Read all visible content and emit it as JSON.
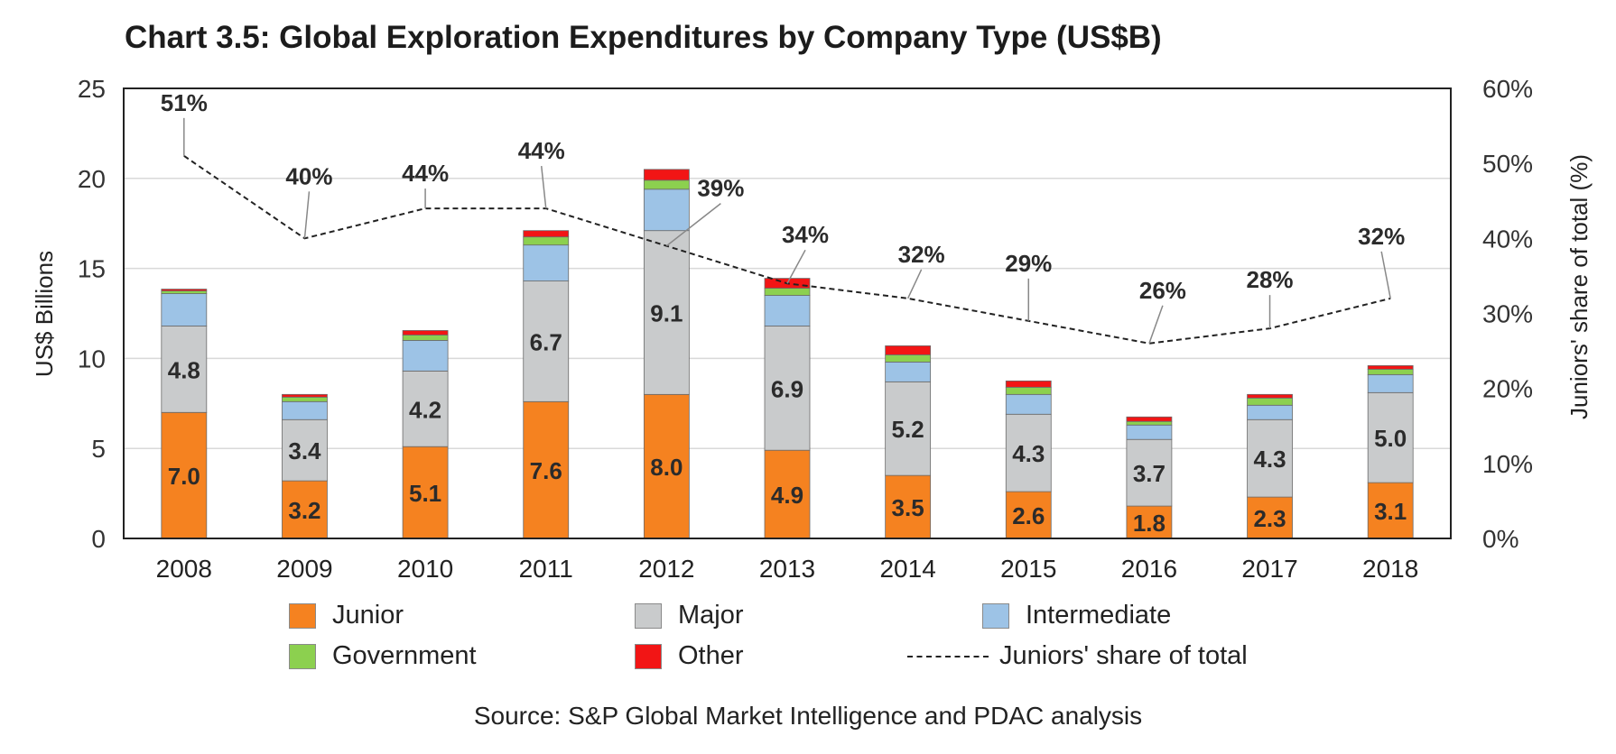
{
  "chart_data": {
    "type": "bar",
    "stacked": true,
    "title": "Chart 3.5: Global Exploration Expenditures by Company Type (US$B)",
    "ylabel": "US$ Billions",
    "y2label": "Juniors' share of total (%)",
    "ylim": [
      0,
      25
    ],
    "y2lim": [
      0,
      60
    ],
    "yticks": [
      "0",
      "5",
      "10",
      "15",
      "20",
      "25"
    ],
    "y2ticks": [
      "0%",
      "10%",
      "20%",
      "30%",
      "40%",
      "50%",
      "60%"
    ],
    "grid": true,
    "legend_position": "bottom",
    "categories": [
      "2008",
      "2009",
      "2010",
      "2011",
      "2012",
      "2013",
      "2014",
      "2015",
      "2016",
      "2017",
      "2018"
    ],
    "series": [
      {
        "name": "Junior",
        "color": "#F58220",
        "values": [
          7.0,
          3.2,
          5.1,
          7.6,
          8.0,
          4.9,
          3.5,
          2.6,
          1.8,
          2.3,
          3.1
        ],
        "labels": [
          "7.0",
          "3.2",
          "5.1",
          "7.6",
          "8.0",
          "4.9",
          "3.5",
          "2.6",
          "1.8",
          "2.3",
          "3.1"
        ]
      },
      {
        "name": "Major",
        "color": "#C9CBCC",
        "values": [
          4.8,
          3.4,
          4.2,
          6.7,
          9.1,
          6.9,
          5.2,
          4.3,
          3.7,
          4.3,
          5.0
        ],
        "labels": [
          "4.8",
          "3.4",
          "4.2",
          "6.7",
          "9.1",
          "6.9",
          "5.2",
          "4.3",
          "3.7",
          "4.3",
          "5.0"
        ]
      },
      {
        "name": "Intermediate",
        "color": "#9DC3E6",
        "values": [
          1.8,
          1.0,
          1.7,
          2.0,
          2.3,
          1.7,
          1.1,
          1.1,
          0.8,
          0.8,
          1.0
        ]
      },
      {
        "name": "Government",
        "color": "#8CD04F",
        "values": [
          0.15,
          0.25,
          0.3,
          0.45,
          0.5,
          0.4,
          0.4,
          0.4,
          0.2,
          0.4,
          0.3
        ]
      },
      {
        "name": "Other",
        "color": "#F21515",
        "values": [
          0.1,
          0.15,
          0.25,
          0.35,
          0.6,
          0.55,
          0.5,
          0.35,
          0.25,
          0.2,
          0.2
        ]
      }
    ],
    "line_series": {
      "name": "Juniors' share of total",
      "axis": "right",
      "color": "#222222",
      "values": [
        51,
        40,
        44,
        44,
        39,
        34,
        32,
        29,
        26,
        28,
        32
      ],
      "labels": [
        "51%",
        "40%",
        "44%",
        "44%",
        "39%",
        "34%",
        "32%",
        "29%",
        "26%",
        "28%",
        "32%"
      ]
    },
    "source": "Source: S&P Global Market Intelligence and PDAC analysis"
  }
}
